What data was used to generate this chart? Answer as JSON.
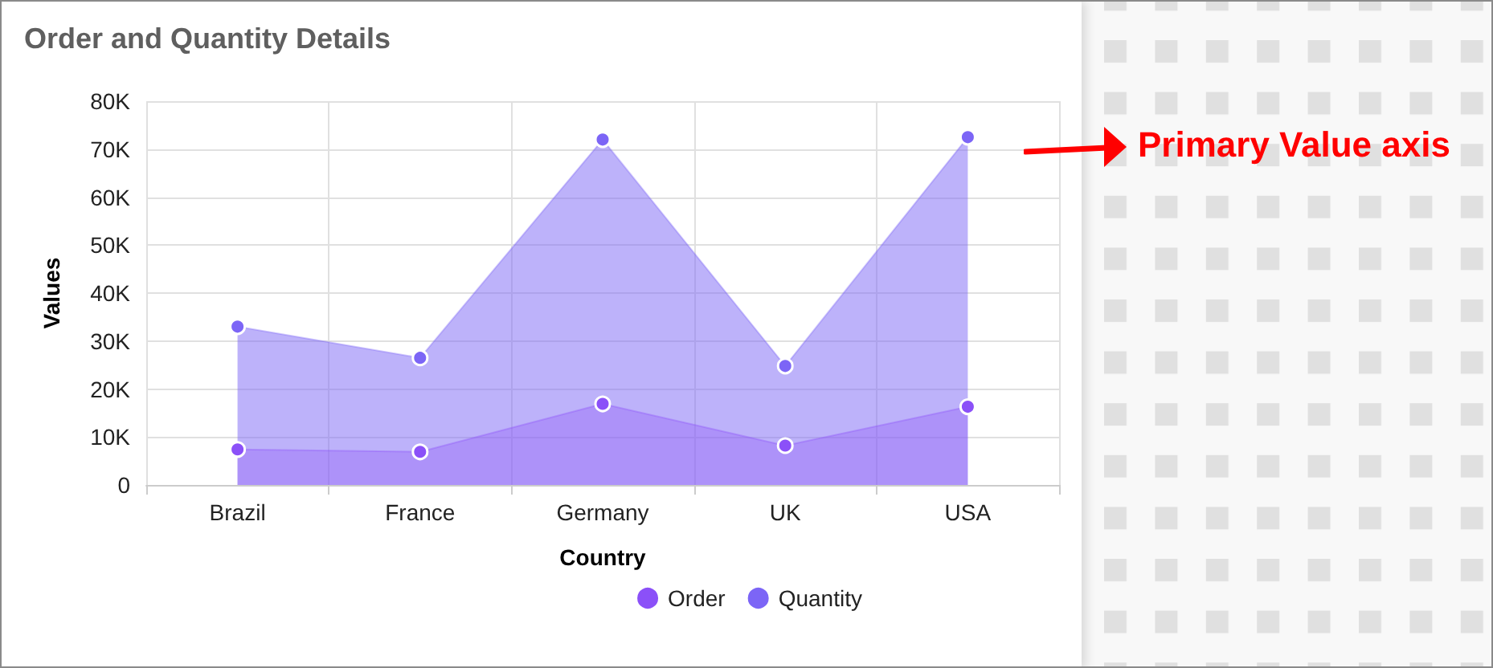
{
  "chart_data": {
    "type": "area",
    "title": "Order and Quantity Details",
    "xlabel": "Country",
    "ylabel": "Values",
    "categories": [
      "Brazil",
      "France",
      "Germany",
      "UK",
      "USA"
    ],
    "series": [
      {
        "name": "Order",
        "color": "#8b50f8",
        "values": [
          7400,
          6900,
          16900,
          8200,
          16300
        ]
      },
      {
        "name": "Quantity",
        "color": "#7c65f6",
        "values": [
          33000,
          26500,
          72000,
          24800,
          72500
        ]
      }
    ],
    "ylim": [
      0,
      80000
    ],
    "yticks": [
      0,
      {
        "value": 10000,
        "label": "10K"
      },
      {
        "value": 20000,
        "label": "20K"
      },
      {
        "value": 30000,
        "label": "30K"
      },
      {
        "value": 40000,
        "label": "40K"
      },
      {
        "value": 50000,
        "label": "50K"
      },
      {
        "value": 60000,
        "label": "60K"
      },
      {
        "value": 70000,
        "label": "70K"
      },
      {
        "value": 80000,
        "label": "80K"
      }
    ],
    "grid": true,
    "legend": "bottom",
    "marker": "circle",
    "annotations": [
      "Primary Value axis"
    ]
  }
}
